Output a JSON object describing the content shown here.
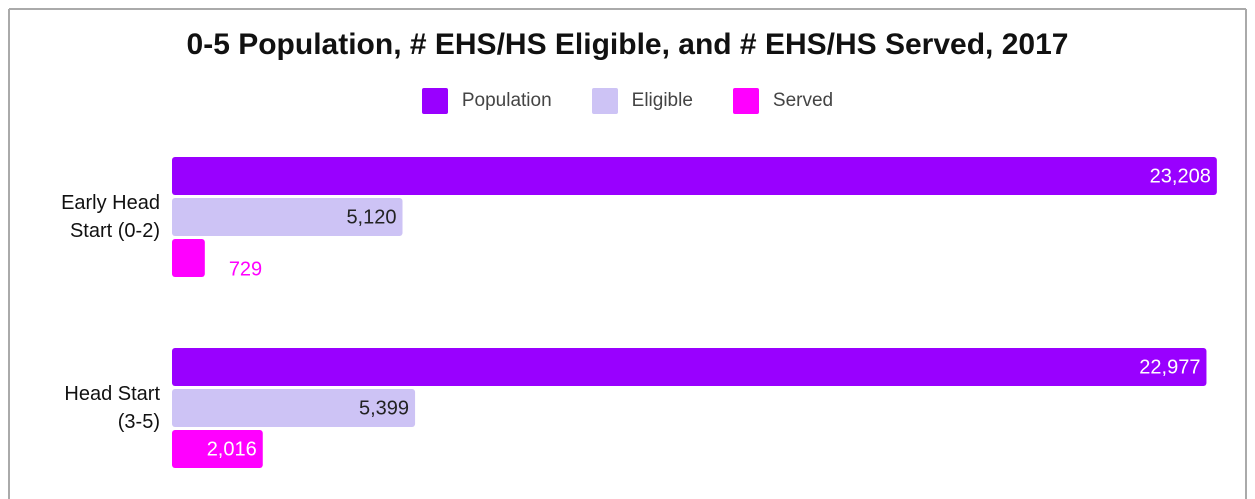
{
  "chart_data": {
    "type": "hbar",
    "title": "0-5 Population, # EHS/HS Eligible, and # EHS/HS Served, 2017",
    "categories": [
      "Early Head Start (0-2)",
      "Head Start (3-5)"
    ],
    "series": [
      {
        "name": "Population",
        "color": "#9900ff",
        "values": [
          23208,
          22977
        ],
        "value_labels": [
          "23,208",
          "22,977"
        ]
      },
      {
        "name": "Eligible",
        "color": "#cdc3f5",
        "values": [
          5120,
          5399
        ],
        "value_labels": [
          "5,120",
          "5,399"
        ]
      },
      {
        "name": "Served",
        "color": "#ff00ff",
        "values": [
          729,
          2016
        ],
        "value_labels": [
          "729",
          "2,016"
        ]
      }
    ],
    "xlim": [
      0,
      23300
    ],
    "legend": "top"
  }
}
